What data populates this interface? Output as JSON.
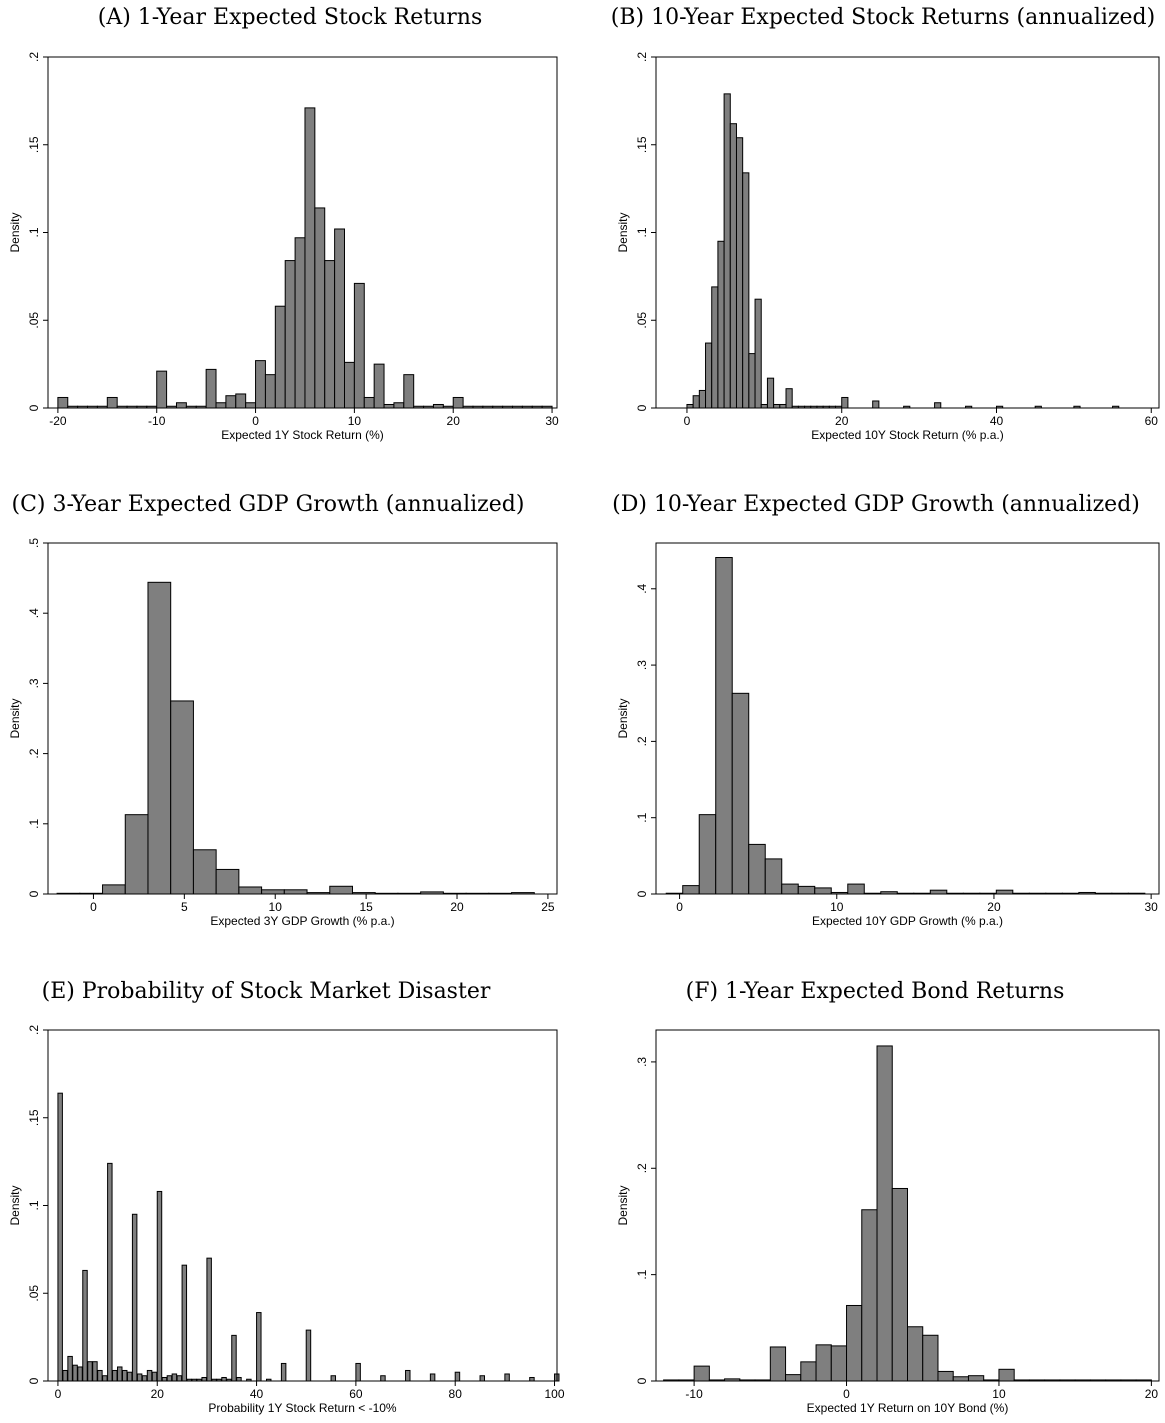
{
  "chart_data": [
    {
      "type": "bar",
      "title": "(A) 1-Year Expected Stock Returns",
      "xlabel": "Expected 1Y Stock Return (%)",
      "ylabel": "Density",
      "xlim": [
        -21,
        30.5
      ],
      "ylim": [
        0,
        0.2
      ],
      "xticks": [
        -20,
        -10,
        0,
        10,
        20,
        30
      ],
      "yticks": [
        0,
        0.05,
        0.1,
        0.15,
        0.2
      ],
      "ytick_labels": [
        "0",
        ".05",
        ".1",
        ".15",
        ".2"
      ],
      "bin_width": 1.0,
      "x": [
        -20,
        -19,
        -18,
        -17,
        -16,
        -15,
        -14,
        -13,
        -12,
        -11,
        -10,
        -9,
        -8,
        -7,
        -6,
        -5,
        -4,
        -3,
        -2,
        -1,
        0,
        1,
        2,
        3,
        4,
        5,
        6,
        7,
        8,
        9,
        10,
        11,
        12,
        13,
        14,
        15,
        16,
        17,
        18,
        19,
        20,
        21,
        22,
        23,
        24,
        25,
        26,
        27,
        28,
        29
      ],
      "values": [
        0.006,
        0.001,
        0.001,
        0.001,
        0.001,
        0.006,
        0.001,
        0.001,
        0.001,
        0.001,
        0.021,
        0.001,
        0.003,
        0.001,
        0.001,
        0.022,
        0.003,
        0.007,
        0.008,
        0.003,
        0.027,
        0.019,
        0.058,
        0.084,
        0.097,
        0.171,
        0.114,
        0.084,
        0.102,
        0.026,
        0.071,
        0.006,
        0.025,
        0.002,
        0.003,
        0.019,
        0.001,
        0.001,
        0.002,
        0.001,
        0.006,
        0.001,
        0.001,
        0.001,
        0.001,
        0.001,
        0.001,
        0.001,
        0.001,
        0.001
      ]
    },
    {
      "type": "bar",
      "title": "(B) 10-Year Expected Stock Returns (annualized)",
      "xlabel": "Expected 10Y Stock Return  (% p.a.)",
      "ylabel": "Density",
      "xlim": [
        -4,
        61
      ],
      "ylim": [
        0,
        0.2
      ],
      "xticks": [
        0,
        20,
        40,
        60
      ],
      "yticks": [
        0,
        0.05,
        0.1,
        0.15,
        0.2
      ],
      "ytick_labels": [
        "0",
        ".05",
        ".1",
        ".15",
        ".2"
      ],
      "bin_width": 0.8,
      "x": [
        0.0,
        0.8,
        1.6,
        2.4,
        3.2,
        4.0,
        4.8,
        5.6,
        6.4,
        7.2,
        8.0,
        8.8,
        9.6,
        10.4,
        11.2,
        12.0,
        12.8,
        13.6,
        14.4,
        15.2,
        16.0,
        16.8,
        17.6,
        18.4,
        19.2,
        20.0,
        24.0,
        28.0,
        32.0,
        36.0,
        40.0,
        45.0,
        50.0,
        55.0
      ],
      "values": [
        0.002,
        0.007,
        0.01,
        0.037,
        0.069,
        0.095,
        0.179,
        0.162,
        0.154,
        0.134,
        0.031,
        0.062,
        0.002,
        0.017,
        0.002,
        0.002,
        0.011,
        0.001,
        0.001,
        0.001,
        0.001,
        0.001,
        0.001,
        0.001,
        0.001,
        0.006,
        0.004,
        0.001,
        0.003,
        0.001,
        0.001,
        0.001,
        0.001,
        0.001
      ]
    },
    {
      "type": "bar",
      "title": "(C) 3-Year Expected GDP Growth (annualized)",
      "xlabel": "Expected 3Y GDP Growth (% p.a.)",
      "ylabel": "Density",
      "xlim": [
        -2.5,
        25.5
      ],
      "ylim": [
        0,
        0.5
      ],
      "xticks": [
        0,
        5,
        10,
        15,
        20,
        25
      ],
      "yticks": [
        0,
        0.1,
        0.2,
        0.3,
        0.4,
        0.5
      ],
      "ytick_labels": [
        "0",
        ".1",
        ".2",
        ".3",
        ".4",
        ".5"
      ],
      "bin_width": 1.25,
      "x": [
        -2.0,
        -0.75,
        0.5,
        1.75,
        3.0,
        4.25,
        5.5,
        6.75,
        8.0,
        9.25,
        10.5,
        11.75,
        13.0,
        14.25,
        15.5,
        16.75,
        18.0,
        19.25,
        20.5,
        21.75,
        23.0
      ],
      "values": [
        0.001,
        0.001,
        0.013,
        0.113,
        0.444,
        0.275,
        0.063,
        0.035,
        0.01,
        0.006,
        0.006,
        0.002,
        0.011,
        0.002,
        0.001,
        0.001,
        0.003,
        0.001,
        0.001,
        0.001,
        0.002
      ]
    },
    {
      "type": "bar",
      "title": "(D) 10-Year Expected GDP Growth (annualized)",
      "xlabel": "Expected 10Y GDP Growth (% p.a.)",
      "ylabel": "Density",
      "xlim": [
        -1.5,
        30.5
      ],
      "ylim": [
        0,
        0.46
      ],
      "xticks": [
        0,
        10,
        20,
        30
      ],
      "yticks": [
        0,
        0.1,
        0.2,
        0.3,
        0.4
      ],
      "ytick_labels": [
        "0",
        ".1",
        ".2",
        ".3",
        ".4"
      ],
      "bin_width": 1.05,
      "x": [
        -0.85,
        0.2,
        1.25,
        2.3,
        3.35,
        4.4,
        5.45,
        6.5,
        7.55,
        8.6,
        9.65,
        10.7,
        11.75,
        12.8,
        13.85,
        14.9,
        15.95,
        17.0,
        18.05,
        19.1,
        20.15,
        21.2,
        22.25,
        23.3,
        24.35,
        25.4,
        26.45,
        27.5,
        28.55
      ],
      "values": [
        0.001,
        0.011,
        0.104,
        0.441,
        0.263,
        0.065,
        0.046,
        0.013,
        0.01,
        0.008,
        0.002,
        0.013,
        0.001,
        0.003,
        0.001,
        0.001,
        0.005,
        0.001,
        0.001,
        0.001,
        0.005,
        0.001,
        0.001,
        0.001,
        0.001,
        0.002,
        0.001,
        0.001,
        0.001
      ]
    },
    {
      "type": "bar",
      "title": "(E) Probability of Stock Market Disaster",
      "xlabel": "Probability 1Y Stock Return < -10%",
      "ylabel": "Density",
      "xlim": [
        -2,
        100.5
      ],
      "ylim": [
        0,
        0.2
      ],
      "xticks": [
        0,
        20,
        40,
        60,
        80,
        100
      ],
      "yticks": [
        0,
        0.05,
        0.1,
        0.15,
        0.2
      ],
      "ytick_labels": [
        "0",
        ".05",
        ".1",
        ".15",
        ".2"
      ],
      "bin_width": 0.9,
      "x": [
        0,
        1,
        2,
        3,
        4,
        5,
        6,
        7,
        8,
        9,
        10,
        11,
        12,
        13,
        14,
        15,
        16,
        17,
        18,
        19,
        20,
        21,
        22,
        23,
        24,
        25,
        26,
        27,
        28,
        29,
        30,
        31,
        32,
        33,
        34,
        35,
        36,
        38,
        40,
        42,
        45,
        50,
        55,
        60,
        65,
        70,
        75,
        80,
        85,
        90,
        95,
        100
      ],
      "values": [
        0.164,
        0.006,
        0.014,
        0.009,
        0.008,
        0.063,
        0.011,
        0.011,
        0.006,
        0.003,
        0.124,
        0.006,
        0.008,
        0.006,
        0.005,
        0.095,
        0.004,
        0.003,
        0.006,
        0.005,
        0.108,
        0.002,
        0.003,
        0.004,
        0.003,
        0.066,
        0.001,
        0.001,
        0.001,
        0.002,
        0.07,
        0.001,
        0.001,
        0.002,
        0.001,
        0.026,
        0.002,
        0.001,
        0.039,
        0.001,
        0.01,
        0.029,
        0.003,
        0.01,
        0.003,
        0.006,
        0.004,
        0.005,
        0.003,
        0.004,
        0.002,
        0.004
      ]
    },
    {
      "type": "bar",
      "title": "(F) 1-Year Expected Bond Returns",
      "xlabel": "Expected 1Y Return on 10Y Bond (%)",
      "ylabel": "Density",
      "xlim": [
        -12.5,
        20.5
      ],
      "ylim": [
        0,
        0.33
      ],
      "xticks": [
        -10,
        0,
        10,
        20
      ],
      "yticks": [
        0,
        0.1,
        0.2,
        0.3
      ],
      "ytick_labels": [
        "0",
        ".1",
        ".2",
        ".3"
      ],
      "bin_width": 1.0,
      "x": [
        -12,
        -11,
        -10,
        -9,
        -8,
        -7,
        -6,
        -5,
        -4,
        -3,
        -2,
        -1,
        0,
        1,
        2,
        3,
        4,
        5,
        6,
        7,
        8,
        9,
        10,
        11,
        12,
        13,
        14,
        15,
        16,
        17,
        18,
        19
      ],
      "values": [
        0.001,
        0.001,
        0.014,
        0.001,
        0.002,
        0.001,
        0.001,
        0.032,
        0.006,
        0.018,
        0.034,
        0.033,
        0.071,
        0.161,
        0.315,
        0.181,
        0.051,
        0.043,
        0.009,
        0.004,
        0.005,
        0.001,
        0.011,
        0.001,
        0.001,
        0.001,
        0.001,
        0.001,
        0.001,
        0.001,
        0.001,
        0.001
      ]
    }
  ]
}
